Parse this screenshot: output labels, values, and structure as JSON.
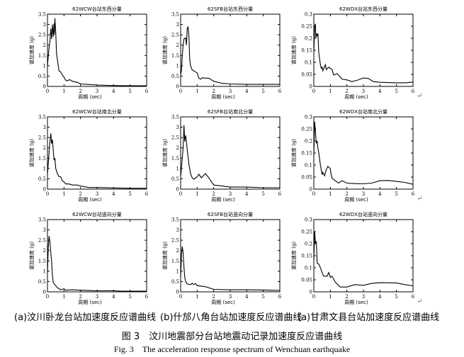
{
  "chart_data": [
    {
      "type": "line",
      "title": "62WCW台站东西分量",
      "xlabel": "周期 (sec)",
      "ylabel": "谱加速度 (g)",
      "xlim": [
        0,
        6
      ],
      "ylim": [
        0,
        3.5
      ],
      "xticks": [
        0,
        1,
        2,
        3,
        4,
        5,
        6
      ],
      "yticks": [
        0,
        0.5,
        1,
        1.5,
        2,
        2.5,
        3,
        3.5
      ],
      "points": [
        [
          0,
          1.0
        ],
        [
          0.05,
          1.5
        ],
        [
          0.1,
          1.9
        ],
        [
          0.15,
          2.2
        ],
        [
          0.2,
          2.8
        ],
        [
          0.25,
          2.3
        ],
        [
          0.3,
          3.0
        ],
        [
          0.35,
          2.4
        ],
        [
          0.4,
          3.05
        ],
        [
          0.42,
          2.5
        ],
        [
          0.45,
          3.3
        ],
        [
          0.5,
          2.6
        ],
        [
          0.55,
          1.6
        ],
        [
          0.6,
          1.3
        ],
        [
          0.7,
          0.75
        ],
        [
          0.8,
          0.7
        ],
        [
          0.9,
          0.55
        ],
        [
          1.0,
          0.45
        ],
        [
          1.1,
          0.3
        ],
        [
          1.2,
          0.27
        ],
        [
          1.35,
          0.33
        ],
        [
          1.5,
          0.25
        ],
        [
          1.8,
          0.2
        ],
        [
          2,
          0.12
        ],
        [
          3,
          0.07
        ],
        [
          4,
          0.04
        ],
        [
          5,
          0.03
        ],
        [
          6,
          0.03
        ]
      ]
    },
    {
      "type": "line",
      "title": "62SFB台站东西分量",
      "xlabel": "周期 (sec)",
      "ylabel": "谱加速度 (g)",
      "xlim": [
        0,
        6
      ],
      "ylim": [
        0,
        3.5
      ],
      "xticks": [
        0,
        1,
        2,
        3,
        4,
        5,
        6
      ],
      "yticks": [
        0,
        0.5,
        1,
        1.5,
        2,
        2.5,
        3,
        3.5
      ],
      "points": [
        [
          0,
          0.55
        ],
        [
          0.05,
          0.8
        ],
        [
          0.1,
          1.5
        ],
        [
          0.15,
          2.0
        ],
        [
          0.2,
          2.3
        ],
        [
          0.3,
          2.35
        ],
        [
          0.35,
          2.0
        ],
        [
          0.4,
          2.8
        ],
        [
          0.45,
          2.9
        ],
        [
          0.5,
          2.4
        ],
        [
          0.55,
          1.3
        ],
        [
          0.6,
          1.0
        ],
        [
          0.7,
          0.8
        ],
        [
          0.8,
          0.75
        ],
        [
          1.0,
          0.65
        ],
        [
          1.1,
          0.4
        ],
        [
          1.2,
          0.35
        ],
        [
          1.3,
          0.42
        ],
        [
          1.5,
          0.4
        ],
        [
          1.7,
          0.4
        ],
        [
          2,
          0.25
        ],
        [
          2.5,
          0.15
        ],
        [
          3,
          0.12
        ],
        [
          4,
          0.1
        ],
        [
          5,
          0.1
        ],
        [
          6,
          0.1
        ]
      ]
    },
    {
      "type": "line",
      "title": "62WDX台站东西分量",
      "xlabel": "周期 (sec)",
      "ylabel": "谱加速度 (g)",
      "xlim": [
        0,
        6
      ],
      "ylim": [
        0,
        0.3
      ],
      "xticks": [
        0,
        1,
        2,
        3,
        4,
        5,
        6
      ],
      "yticks": [
        0,
        0.05,
        0.1,
        0.15,
        0.2,
        0.25,
        0.3
      ],
      "points": [
        [
          0,
          0.14
        ],
        [
          0.05,
          0.25
        ],
        [
          0.1,
          0.26
        ],
        [
          0.12,
          0.2
        ],
        [
          0.15,
          0.22
        ],
        [
          0.2,
          0.21
        ],
        [
          0.25,
          0.22
        ],
        [
          0.3,
          0.14
        ],
        [
          0.4,
          0.09
        ],
        [
          0.45,
          0.075
        ],
        [
          0.5,
          0.08
        ],
        [
          0.55,
          0.065
        ],
        [
          0.6,
          0.075
        ],
        [
          0.7,
          0.09
        ],
        [
          0.75,
          0.07
        ],
        [
          0.9,
          0.08
        ],
        [
          1.0,
          0.075
        ],
        [
          1.1,
          0.07
        ],
        [
          1.2,
          0.047
        ],
        [
          1.4,
          0.053
        ],
        [
          1.6,
          0.04
        ],
        [
          1.7,
          0.03
        ],
        [
          2,
          0.027
        ],
        [
          2.3,
          0.02
        ],
        [
          2.6,
          0.025
        ],
        [
          3,
          0.035
        ],
        [
          3.3,
          0.033
        ],
        [
          3.6,
          0.02
        ],
        [
          4,
          0.017
        ],
        [
          5,
          0.015
        ],
        [
          5.5,
          0.015
        ],
        [
          6,
          0.018
        ]
      ]
    },
    {
      "type": "line",
      "title": "62WCW台站南北分量",
      "xlabel": "周期 (sec)",
      "ylabel": "谱加速度 (g)",
      "xlim": [
        0,
        6
      ],
      "ylim": [
        0,
        3.5
      ],
      "xticks": [
        0,
        1,
        2,
        3,
        4,
        5,
        6
      ],
      "yticks": [
        0,
        0.5,
        1,
        1.5,
        2,
        2.5,
        3,
        3.5
      ],
      "points": [
        [
          0,
          0.7
        ],
        [
          0.1,
          1.8
        ],
        [
          0.15,
          2.3
        ],
        [
          0.2,
          2.7
        ],
        [
          0.25,
          2.2
        ],
        [
          0.3,
          2.4
        ],
        [
          0.4,
          1.4
        ],
        [
          0.45,
          1.5
        ],
        [
          0.5,
          1.0
        ],
        [
          0.6,
          0.75
        ],
        [
          0.7,
          0.6
        ],
        [
          0.8,
          0.6
        ],
        [
          0.9,
          0.4
        ],
        [
          1.0,
          0.35
        ],
        [
          1.1,
          0.25
        ],
        [
          1.3,
          0.25
        ],
        [
          1.5,
          0.2
        ],
        [
          1.8,
          0.2
        ],
        [
          2,
          0.15
        ],
        [
          2.5,
          0.08
        ],
        [
          3,
          0.08
        ],
        [
          4,
          0.06
        ],
        [
          5,
          0.04
        ],
        [
          6,
          0.04
        ]
      ]
    },
    {
      "type": "line",
      "title": "62SFB台站南北分量",
      "xlabel": "周期 (sec)",
      "ylabel": "谱加速度 (g)",
      "xlim": [
        0,
        6
      ],
      "ylim": [
        0,
        3.5
      ],
      "xticks": [
        0,
        1,
        2,
        3,
        4,
        5,
        6
      ],
      "yticks": [
        0,
        0.5,
        1,
        1.5,
        2,
        2.5,
        3,
        3.5
      ],
      "points": [
        [
          0,
          0.6
        ],
        [
          0.1,
          1.5
        ],
        [
          0.15,
          2.0
        ],
        [
          0.2,
          3.1
        ],
        [
          0.25,
          2.3
        ],
        [
          0.3,
          2.6
        ],
        [
          0.35,
          2.3
        ],
        [
          0.4,
          1.9
        ],
        [
          0.5,
          1.2
        ],
        [
          0.6,
          0.75
        ],
        [
          0.7,
          0.55
        ],
        [
          0.8,
          0.48
        ],
        [
          1.0,
          0.6
        ],
        [
          1.1,
          0.72
        ],
        [
          1.25,
          0.55
        ],
        [
          1.5,
          0.75
        ],
        [
          1.7,
          0.55
        ],
        [
          2,
          0.2
        ],
        [
          2.5,
          0.15
        ],
        [
          3,
          0.1
        ],
        [
          4,
          0.1
        ],
        [
          5,
          0.07
        ],
        [
          6,
          0.07
        ]
      ]
    },
    {
      "type": "line",
      "title": "62WDX台站南北分量",
      "xlabel": "周期 (sec)",
      "ylabel": "谱加速度 (g)",
      "xlim": [
        0,
        6
      ],
      "ylim": [
        0,
        0.3
      ],
      "xticks": [
        0,
        1,
        2,
        3,
        4,
        5,
        6
      ],
      "yticks": [
        0,
        0.05,
        0.1,
        0.15,
        0.2,
        0.25,
        0.3
      ],
      "points": [
        [
          0,
          0.14
        ],
        [
          0.05,
          0.28
        ],
        [
          0.1,
          0.24
        ],
        [
          0.15,
          0.19
        ],
        [
          0.2,
          0.2
        ],
        [
          0.25,
          0.17
        ],
        [
          0.3,
          0.15
        ],
        [
          0.4,
          0.1
        ],
        [
          0.5,
          0.06
        ],
        [
          0.55,
          0.07
        ],
        [
          0.65,
          0.055
        ],
        [
          0.75,
          0.08
        ],
        [
          0.85,
          0.095
        ],
        [
          1.0,
          0.085
        ],
        [
          1.05,
          0.06
        ],
        [
          1.1,
          0.045
        ],
        [
          1.3,
          0.035
        ],
        [
          1.5,
          0.025
        ],
        [
          1.7,
          0.035
        ],
        [
          2,
          0.025
        ],
        [
          2.5,
          0.023
        ],
        [
          3,
          0.022
        ],
        [
          3.5,
          0.025
        ],
        [
          4,
          0.035
        ],
        [
          4.5,
          0.036
        ],
        [
          5,
          0.032
        ],
        [
          5.5,
          0.028
        ],
        [
          6,
          0.02
        ]
      ]
    },
    {
      "type": "line",
      "title": "62WCW台站竖向分量",
      "xlabel": "周期 (sec)",
      "ylabel": "谱加速度 (g)",
      "xlim": [
        0,
        6
      ],
      "ylim": [
        0,
        3.5
      ],
      "xticks": [
        0,
        1,
        2,
        3,
        4,
        5,
        6
      ],
      "yticks": [
        0,
        0.5,
        1,
        1.5,
        2,
        2.5,
        3,
        3.5
      ],
      "points": [
        [
          0,
          0.9
        ],
        [
          0.05,
          2.2
        ],
        [
          0.1,
          2.7
        ],
        [
          0.15,
          2.4
        ],
        [
          0.2,
          1.9
        ],
        [
          0.25,
          1.5
        ],
        [
          0.3,
          0.8
        ],
        [
          0.35,
          0.45
        ],
        [
          0.45,
          0.35
        ],
        [
          0.6,
          0.2
        ],
        [
          0.8,
          0.1
        ],
        [
          1,
          0.15
        ],
        [
          1.1,
          0.08
        ],
        [
          1.5,
          0.1
        ],
        [
          2,
          0.08
        ],
        [
          3,
          0.05
        ],
        [
          4,
          0.05
        ],
        [
          4.5,
          0.03
        ],
        [
          6,
          0.03
        ]
      ]
    },
    {
      "type": "line",
      "title": "62SFB台站竖向分量",
      "xlabel": "周期 (sec)",
      "ylabel": "谱加速度 (g)",
      "xlim": [
        0,
        6
      ],
      "ylim": [
        0,
        3.5
      ],
      "xticks": [
        0,
        1,
        2,
        3,
        4,
        5,
        6
      ],
      "yticks": [
        0,
        0.5,
        1,
        1.5,
        2,
        2.5,
        3,
        3.5
      ],
      "points": [
        [
          0,
          0.7
        ],
        [
          0.05,
          1.8
        ],
        [
          0.1,
          2.2
        ],
        [
          0.15,
          1.9
        ],
        [
          0.2,
          1.2
        ],
        [
          0.25,
          0.7
        ],
        [
          0.3,
          0.5
        ],
        [
          0.4,
          0.38
        ],
        [
          0.6,
          0.35
        ],
        [
          0.7,
          0.42
        ],
        [
          0.8,
          0.35
        ],
        [
          0.9,
          0.4
        ],
        [
          1.0,
          0.3
        ],
        [
          1.5,
          0.25
        ],
        [
          2,
          0.12
        ],
        [
          3,
          0.1
        ],
        [
          4,
          0.1
        ],
        [
          5,
          0.09
        ],
        [
          6,
          0.07
        ]
      ]
    },
    {
      "type": "line",
      "title": "62WDX台站竖向分量",
      "xlabel": "周期 (sec)",
      "ylabel": "谱加速度 (g)",
      "xlim": [
        0,
        6
      ],
      "ylim": [
        0,
        0.3
      ],
      "xticks": [
        0,
        1,
        2,
        3,
        4,
        5,
        6
      ],
      "yticks": [
        0,
        0.05,
        0.1,
        0.15,
        0.2,
        0.25,
        0.3
      ],
      "points": [
        [
          0,
          0.13
        ],
        [
          0.05,
          0.25
        ],
        [
          0.1,
          0.2
        ],
        [
          0.15,
          0.21
        ],
        [
          0.2,
          0.12
        ],
        [
          0.3,
          0.115
        ],
        [
          0.4,
          0.1
        ],
        [
          0.5,
          0.08
        ],
        [
          0.6,
          0.065
        ],
        [
          0.8,
          0.065
        ],
        [
          0.9,
          0.08
        ],
        [
          1.0,
          0.06
        ],
        [
          1.1,
          0.065
        ],
        [
          1.3,
          0.04
        ],
        [
          1.6,
          0.02
        ],
        [
          2,
          0.02
        ],
        [
          2.5,
          0.03
        ],
        [
          3,
          0.027
        ],
        [
          3.5,
          0.035
        ],
        [
          4,
          0.038
        ],
        [
          5,
          0.037
        ],
        [
          5.5,
          0.03
        ],
        [
          6,
          0.025
        ]
      ]
    }
  ],
  "captions": {
    "sub_a": "(a)汶川卧龙台站加速度反应谱曲线",
    "sub_b": "(b)什邡八角台站加速度反应谱曲线",
    "sub_c": "(a)甘肃文县台站加速度反应谱曲线",
    "figure_cn": "图 3　汶川地震部分台站地震动记录加速度反应谱曲线",
    "figure_en": "Fig. 3　The acceleration response spectrum of Wenchuan earthquake"
  },
  "line_color": "#000000"
}
